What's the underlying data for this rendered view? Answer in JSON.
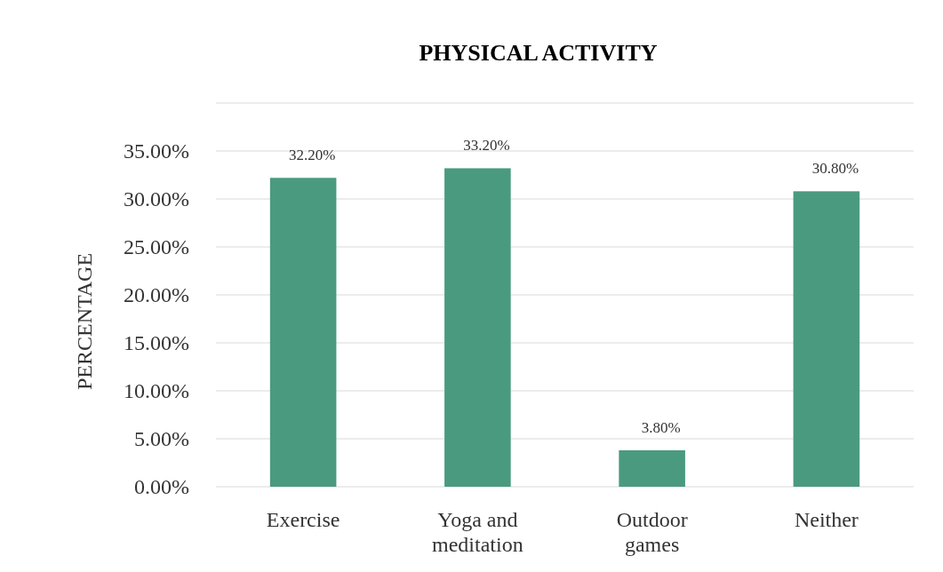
{
  "chart_data": {
    "type": "bar",
    "title": "PHYSICAL ACTIVITY",
    "ylabel": "PERCENTAGE",
    "categories": [
      "Exercise",
      "Yoga and meditation",
      "Outdoor games",
      "Neither"
    ],
    "values": [
      32.2,
      33.2,
      3.8,
      30.8
    ],
    "color": "#4a9a80",
    "value_labels": [
      "32.20%",
      "33.20%",
      "3.80%",
      "30.80%"
    ],
    "ylim": [
      0,
      40
    ],
    "yticks": [
      {
        "value": 0,
        "label": "0.00%"
      },
      {
        "value": 5,
        "label": "5.00%"
      },
      {
        "value": 10,
        "label": "10.00%"
      },
      {
        "value": 15,
        "label": "15.00%"
      },
      {
        "value": 20,
        "label": "20.00%"
      },
      {
        "value": 25,
        "label": "25.00%"
      },
      {
        "value": 30,
        "label": "30.00%"
      },
      {
        "value": 35,
        "label": "35.00%"
      },
      {
        "value": 40,
        "label": null
      }
    ],
    "grid": "y"
  }
}
